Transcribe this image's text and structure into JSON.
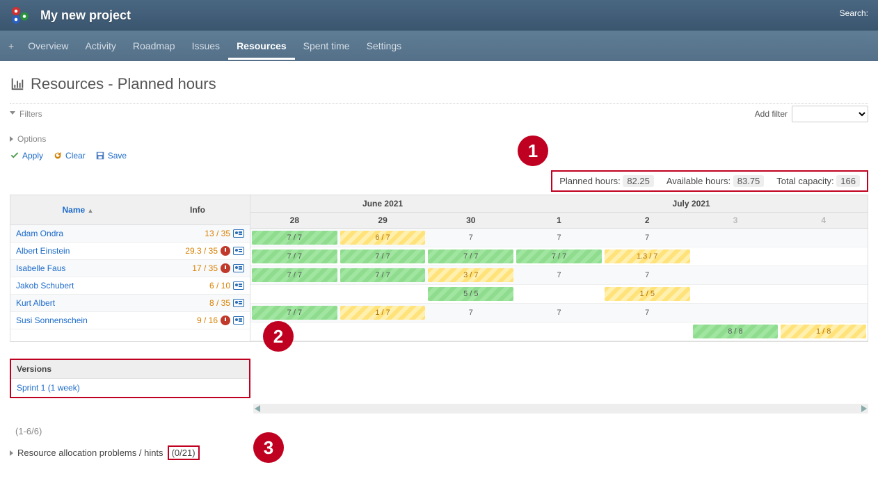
{
  "header": {
    "project": "My new project",
    "search_label": "Search:"
  },
  "nav": {
    "items": [
      "Overview",
      "Activity",
      "Roadmap",
      "Issues",
      "Resources",
      "Spent time",
      "Settings"
    ],
    "active_index": 4
  },
  "page": {
    "title": "Resources - Planned hours"
  },
  "filters": {
    "label": "Filters",
    "add_filter_label": "Add filter"
  },
  "options": {
    "label": "Options"
  },
  "actions": {
    "apply": "Apply",
    "clear": "Clear",
    "save": "Save"
  },
  "summary": {
    "planned_label": "Planned hours:",
    "planned_value": "82.25",
    "available_label": "Available hours:",
    "available_value": "83.75",
    "total_label": "Total capacity:",
    "total_value": "166"
  },
  "callouts": {
    "one": "1",
    "two": "2",
    "three": "3"
  },
  "columns": {
    "name": "Name",
    "info": "Info"
  },
  "months": [
    {
      "label": "June 2021",
      "span": 3
    },
    {
      "label": "July 2021",
      "span": 4
    }
  ],
  "days": [
    {
      "num": "28",
      "weekend": false
    },
    {
      "num": "29",
      "weekend": false
    },
    {
      "num": "30",
      "weekend": false
    },
    {
      "num": "1",
      "weekend": false
    },
    {
      "num": "2",
      "weekend": false
    },
    {
      "num": "3",
      "weekend": true
    },
    {
      "num": "4",
      "weekend": true
    }
  ],
  "resources": [
    {
      "name": "Adam Ondra",
      "ratio": "13 / 35",
      "over": false,
      "cells": [
        {
          "t": "7 / 7",
          "c": "green"
        },
        {
          "t": "6 / 7",
          "c": "yellow"
        },
        {
          "t": "7",
          "c": "none"
        },
        {
          "t": "7",
          "c": "none"
        },
        {
          "t": "7",
          "c": "none"
        },
        {
          "t": "",
          "c": "none"
        },
        {
          "t": "",
          "c": "none"
        }
      ]
    },
    {
      "name": "Albert Einstein",
      "ratio": "29.3 / 35",
      "over": true,
      "cells": [
        {
          "t": "7 / 7",
          "c": "green"
        },
        {
          "t": "7 / 7",
          "c": "green"
        },
        {
          "t": "7 / 7",
          "c": "green"
        },
        {
          "t": "7 / 7",
          "c": "green"
        },
        {
          "t": "1.3 / 7",
          "c": "yellow"
        },
        {
          "t": "",
          "c": "none"
        },
        {
          "t": "",
          "c": "none"
        }
      ]
    },
    {
      "name": "Isabelle Faus",
      "ratio": "17 / 35",
      "over": true,
      "cells": [
        {
          "t": "7 / 7",
          "c": "green"
        },
        {
          "t": "7 / 7",
          "c": "green"
        },
        {
          "t": "3 / 7",
          "c": "yellow"
        },
        {
          "t": "7",
          "c": "none"
        },
        {
          "t": "7",
          "c": "none"
        },
        {
          "t": "",
          "c": "none"
        },
        {
          "t": "",
          "c": "none"
        }
      ]
    },
    {
      "name": "Jakob Schubert",
      "ratio": "6 / 10",
      "over": false,
      "cells": [
        {
          "t": "",
          "c": "none"
        },
        {
          "t": "",
          "c": "none"
        },
        {
          "t": "5 / 5",
          "c": "green"
        },
        {
          "t": "",
          "c": "none"
        },
        {
          "t": "1 / 5",
          "c": "yellow"
        },
        {
          "t": "",
          "c": "none"
        },
        {
          "t": "",
          "c": "none"
        }
      ]
    },
    {
      "name": "Kurt Albert",
      "ratio": "8 / 35",
      "over": false,
      "cells": [
        {
          "t": "7 / 7",
          "c": "green"
        },
        {
          "t": "1 / 7",
          "c": "yellow"
        },
        {
          "t": "7",
          "c": "none"
        },
        {
          "t": "7",
          "c": "none"
        },
        {
          "t": "7",
          "c": "none"
        },
        {
          "t": "",
          "c": "none"
        },
        {
          "t": "",
          "c": "none"
        }
      ]
    },
    {
      "name": "Susi Sonnenschein",
      "ratio": "9 / 16",
      "over": true,
      "cells": [
        {
          "t": "",
          "c": "none"
        },
        {
          "t": "",
          "c": "none"
        },
        {
          "t": "",
          "c": "none"
        },
        {
          "t": "",
          "c": "none"
        },
        {
          "t": "",
          "c": "none"
        },
        {
          "t": "8 / 8",
          "c": "green"
        },
        {
          "t": "1 / 8",
          "c": "yellow"
        }
      ]
    }
  ],
  "versions": {
    "header": "Versions",
    "item": "Sprint 1 (1 week)"
  },
  "paging": "(1-6/6)",
  "hints": {
    "label": "Resource allocation problems / hints",
    "count": "(0/21)"
  },
  "colors": {
    "topbar": "#3e5b76",
    "navbar": "#5a7890",
    "link": "#1b6ac9",
    "callout": "#c00020",
    "green_bar": "#8fdc8f",
    "yellow_bar": "#ffe27a",
    "ratio_text": "#d98000"
  }
}
